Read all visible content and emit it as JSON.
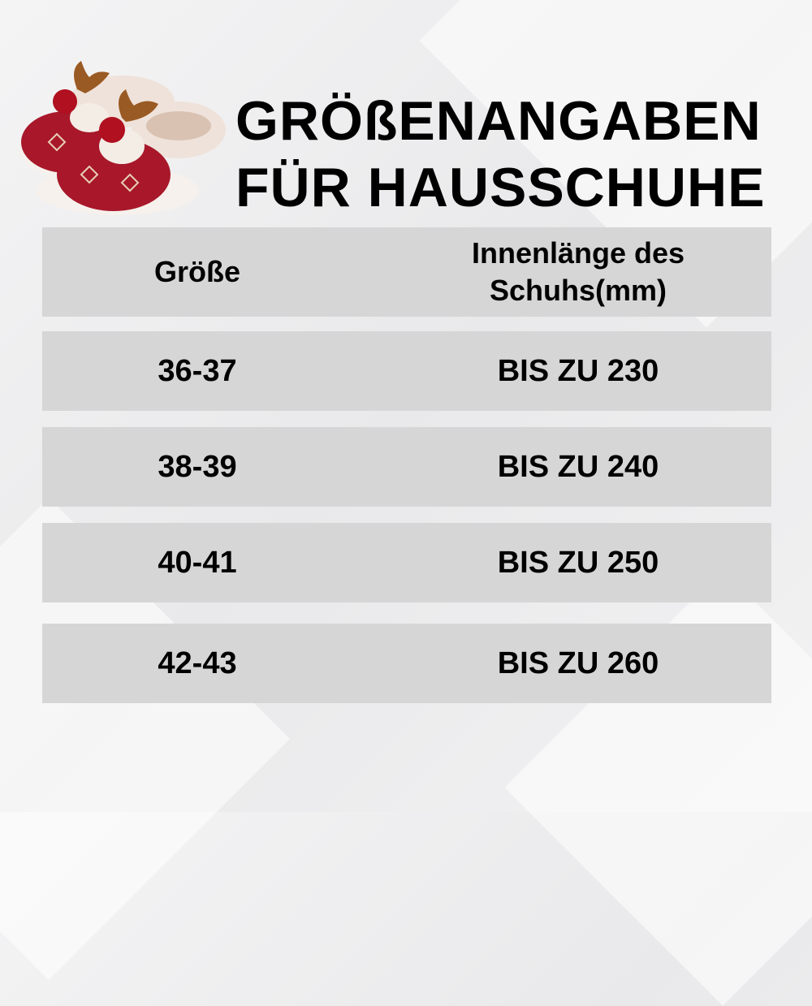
{
  "title": {
    "line1": "GRÖßENANGABEN",
    "line2": "FÜR HAUSSCHUHE"
  },
  "table": {
    "headers": [
      "Größe",
      "Innenlänge des Schuhs(mm)"
    ],
    "rows": [
      [
        "36-37",
        "BIS ZU 230"
      ],
      [
        "38-39",
        "BIS ZU 240"
      ],
      [
        "40-41",
        "BIS ZU 250"
      ],
      [
        "42-43",
        "BIS ZU 260"
      ]
    ]
  },
  "colors": {
    "row_bg": "#d6d6d6",
    "slipper_red": "#a8182a",
    "antler": "#9a5a24",
    "fur": "#efe2da"
  }
}
